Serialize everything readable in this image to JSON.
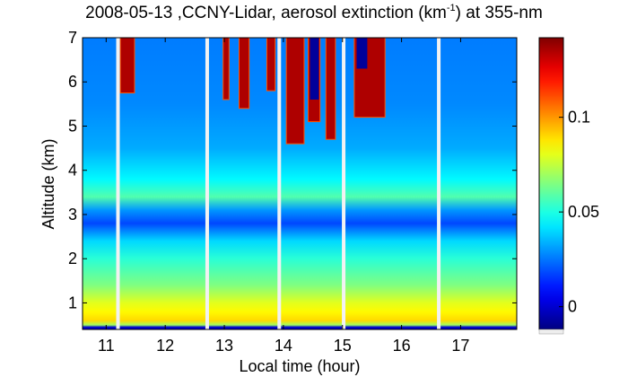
{
  "chart_data": {
    "type": "heatmap",
    "title_pre": "2008-05-13 ,CCNY-Lidar, aerosol extinction (km",
    "title_sup": "-1",
    "title_post": ") at 355-nm",
    "xlabel": "Local time (hour)",
    "ylabel": "Altitude (km)",
    "xlim": [
      10.6,
      17.95
    ],
    "ylim": [
      0.4,
      7
    ],
    "x_ticks": [
      "11",
      "12",
      "13",
      "14",
      "15",
      "16",
      "17"
    ],
    "y_ticks": [
      "1",
      "2",
      "3",
      "4",
      "5",
      "6",
      "7"
    ],
    "colorbar": {
      "colormap": "jet",
      "range": [
        -0.012,
        0.142
      ],
      "ticks": [
        "0",
        "0.05",
        "0.1"
      ]
    },
    "data_gaps_hours": [
      11.2,
      12.71,
      13.93,
      15.02,
      16.63
    ],
    "profile": [
      {
        "altitude_km": 0.45,
        "extinction": 0.0
      },
      {
        "altitude_km": 0.5,
        "extinction": 0.07
      },
      {
        "altitude_km": 0.6,
        "extinction": 0.09
      },
      {
        "altitude_km": 0.8,
        "extinction": 0.085
      },
      {
        "altitude_km": 1.0,
        "extinction": 0.08
      },
      {
        "altitude_km": 1.4,
        "extinction": 0.065
      },
      {
        "altitude_km": 2.0,
        "extinction": 0.052
      },
      {
        "altitude_km": 2.4,
        "extinction": 0.04
      },
      {
        "altitude_km": 2.8,
        "extinction": 0.018
      },
      {
        "altitude_km": 3.1,
        "extinction": 0.03
      },
      {
        "altitude_km": 3.4,
        "extinction": 0.058
      },
      {
        "altitude_km": 3.8,
        "extinction": 0.045
      },
      {
        "altitude_km": 4.5,
        "extinction": 0.033
      },
      {
        "altitude_km": 5.5,
        "extinction": 0.028
      },
      {
        "altitude_km": 7.0,
        "extinction": 0.026
      }
    ],
    "cloud_events": [
      {
        "x_start": 11.24,
        "x_end": 11.48,
        "base_km": 5.75,
        "top_km": 7
      },
      {
        "x_start": 12.98,
        "x_end": 13.08,
        "base_km": 5.6,
        "top_km": 7
      },
      {
        "x_start": 13.25,
        "x_end": 13.42,
        "base_km": 5.4,
        "top_km": 7
      },
      {
        "x_start": 13.72,
        "x_end": 13.86,
        "base_km": 5.8,
        "top_km": 7
      },
      {
        "x_start": 14.05,
        "x_end": 14.35,
        "base_km": 4.6,
        "top_km": 7
      },
      {
        "x_start": 14.42,
        "x_end": 14.62,
        "base_km": 5.1,
        "top_km": 7
      },
      {
        "x_start": 14.72,
        "x_end": 14.88,
        "base_km": 4.7,
        "top_km": 7
      },
      {
        "x_start": 15.2,
        "x_end": 15.72,
        "base_km": 5.2,
        "top_km": 7
      }
    ],
    "attenuated_regions": [
      {
        "x_start": 14.45,
        "x_end": 14.6,
        "base_km": 5.6,
        "top_km": 7
      },
      {
        "x_start": 15.24,
        "x_end": 15.42,
        "base_km": 6.3,
        "top_km": 7
      }
    ]
  }
}
